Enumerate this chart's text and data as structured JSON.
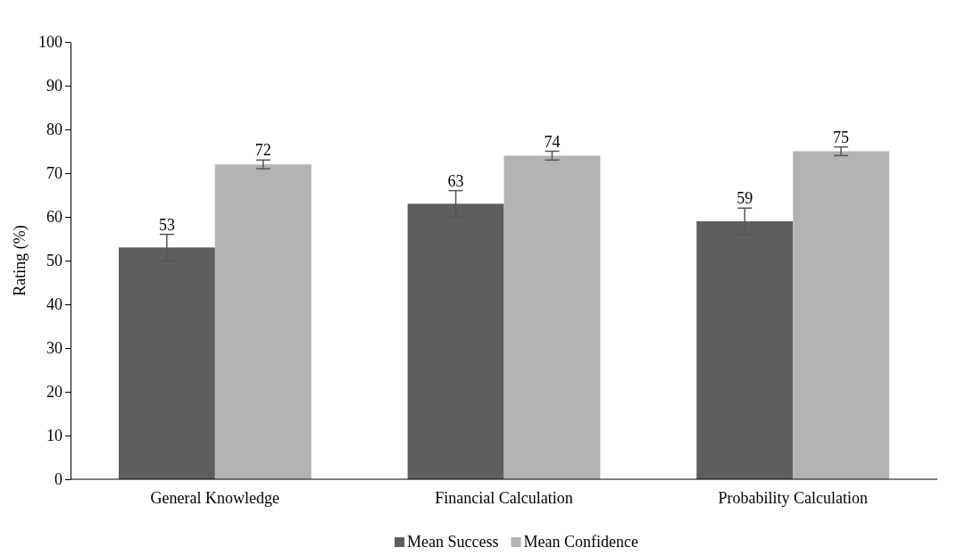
{
  "chart_data": {
    "type": "bar",
    "ylabel": "Rating (%)",
    "categories": [
      "General Knowledge",
      "Financial Calculation",
      "Probability Calculation"
    ],
    "series": [
      {
        "name": "Mean Success",
        "color": "#5e5e5e",
        "values": [
          53,
          63,
          59
        ],
        "errors": [
          3,
          3,
          3
        ]
      },
      {
        "name": "Mean Confidence",
        "color": "#b3b3b3",
        "values": [
          72,
          74,
          75
        ],
        "errors": [
          1,
          1,
          1
        ]
      }
    ],
    "ylim": [
      0,
      100
    ],
    "yticks": [
      0,
      10,
      20,
      30,
      40,
      50,
      60,
      70,
      80,
      90,
      100
    ],
    "data_labels": true,
    "legend": "bottom",
    "grid": false
  }
}
